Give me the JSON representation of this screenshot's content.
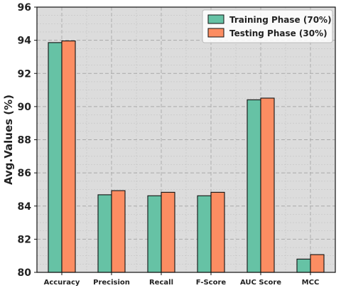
{
  "chart_data": {
    "type": "bar",
    "categories": [
      "Accuracy",
      "Precision",
      "Recall",
      "F-Score",
      "AUC Score",
      "MCC"
    ],
    "series": [
      {
        "name": "Training Phase (70%)",
        "values": [
          93.86,
          84.68,
          84.62,
          84.62,
          90.41,
          80.8
        ],
        "color": "#66c2a5"
      },
      {
        "name": "Testing Phase (30%)",
        "values": [
          93.96,
          84.93,
          84.83,
          84.83,
          90.51,
          81.07
        ],
        "color": "#fc8d62"
      }
    ],
    "ylabel": "Avg.Values (%)",
    "xlabel": "",
    "ylim": [
      80,
      96
    ],
    "yticks": [
      80,
      82,
      84,
      86,
      88,
      90,
      92,
      94,
      96
    ],
    "grid": true,
    "legend_position": "top-right",
    "background": "#dcdcdc"
  }
}
